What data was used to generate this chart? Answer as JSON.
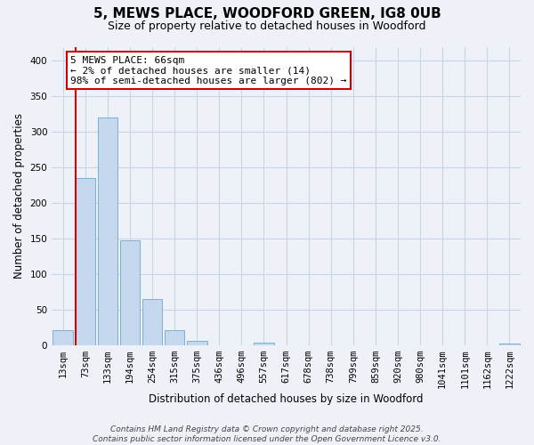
{
  "title1": "5, MEWS PLACE, WOODFORD GREEN, IG8 0UB",
  "title2": "Size of property relative to detached houses in Woodford",
  "xlabel": "Distribution of detached houses by size in Woodford",
  "ylabel": "Number of detached properties",
  "bar_color": "#c5d8ee",
  "bar_edge_color": "#7aafd4",
  "vline_color": "#cc0000",
  "annotation_text": "5 MEWS PLACE: 66sqm\n← 2% of detached houses are smaller (14)\n98% of semi-detached houses are larger (802) →",
  "annotation_box_color": "#ffffff",
  "annotation_box_edge_color": "#cc0000",
  "categories": [
    "13sqm",
    "73sqm",
    "133sqm",
    "194sqm",
    "254sqm",
    "315sqm",
    "375sqm",
    "436sqm",
    "496sqm",
    "557sqm",
    "617sqm",
    "678sqm",
    "738sqm",
    "799sqm",
    "859sqm",
    "920sqm",
    "980sqm",
    "1041sqm",
    "1101sqm",
    "1162sqm",
    "1222sqm"
  ],
  "values": [
    21,
    235,
    321,
    147,
    65,
    21,
    6,
    0,
    0,
    3,
    0,
    0,
    0,
    0,
    0,
    0,
    0,
    0,
    0,
    0,
    2
  ],
  "ylim": [
    0,
    420
  ],
  "yticks": [
    0,
    50,
    100,
    150,
    200,
    250,
    300,
    350,
    400
  ],
  "footnote": "Contains HM Land Registry data © Crown copyright and database right 2025.\nContains public sector information licensed under the Open Government Licence v3.0.",
  "bg_color": "#eef2f8",
  "grid_color": "#c8d4e8",
  "title1_fontsize": 11,
  "title2_fontsize": 9,
  "xlabel_fontsize": 8.5,
  "ylabel_fontsize": 8.5,
  "tick_fontsize": 7.5,
  "footnote_fontsize": 6.5
}
